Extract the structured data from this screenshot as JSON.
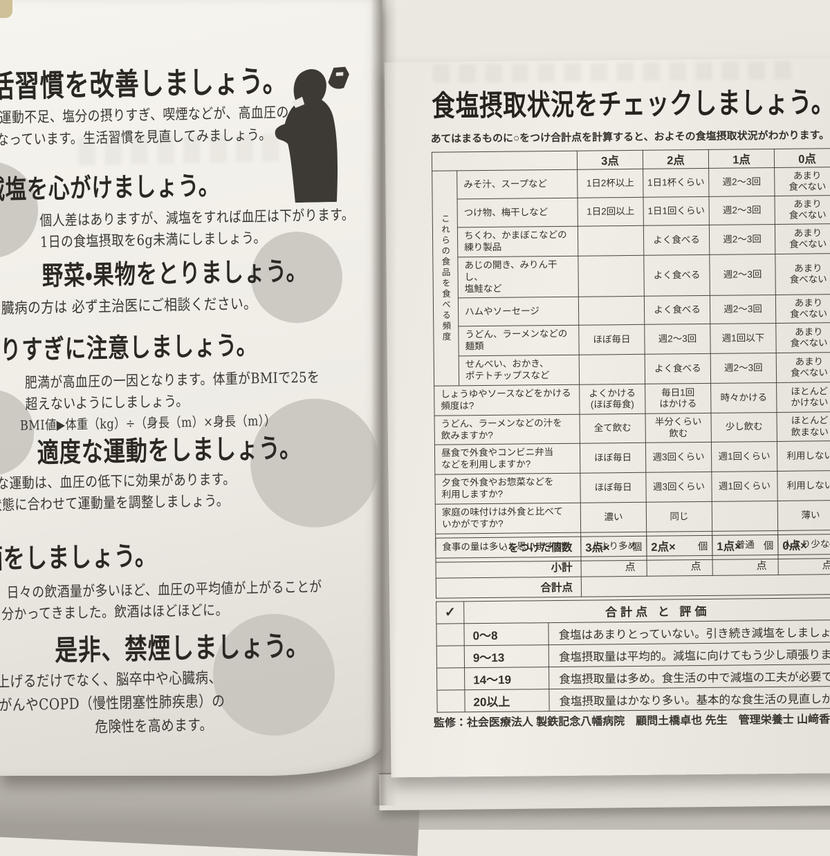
{
  "colors": {
    "paper_left": "#eeece5",
    "paper_right": "#ece9e2",
    "ink": "#34312c",
    "table_line": "#47443d",
    "circle": "#c6c3bc"
  },
  "icons": {
    "silhouette": "person-drinking-silhouette",
    "packet": "small-seasoning-packet"
  },
  "left_page": {
    "sections": [
      {
        "heading": "活習慣を改善しましょう。",
        "lines": [
          "や運動不足、塩分の摂りすぎ、喫煙などが、高血圧の",
          "となっています。生活習慣を見直してみましょう。"
        ]
      },
      {
        "heading": "減塩を心がけましょう。",
        "lines": [
          "個人差はありますが、減塩をすれば血圧は下がります。",
          "1日の食塩摂取を6g未満にしましょう。"
        ]
      },
      {
        "heading": "野菜・果物をとりましょう。",
        "lines": [
          "腎臓病の方は 必ず主治医にご相談ください。"
        ]
      },
      {
        "heading": "太りすぎに注意しましょう。",
        "lines": [
          "肥満が高血圧の一因となります。体重がBMIで25を",
          "超えないようにしましょう。",
          "BMI値▶体重（kg）÷（身長（m）×身長（m））"
        ]
      },
      {
        "heading": "適度な運動をしましょう。",
        "lines": [
          "適度な運動は、血圧の低下に効果があります。",
          "体の状態に合わせて運動量を調整しましょう。"
        ]
      },
      {
        "heading": "節酒をしましょう。",
        "lines": [
          "日々の飲酒量が多いほど、血圧の平均値が上がることが",
          "分かってきました。飲酒はほどほどに。"
        ]
      },
      {
        "heading": "是非、禁煙しましょう。",
        "lines": [
          "血圧を上げるだけでなく、脳卒中や心臓病、",
          "がんやCOPD（慢性閉塞性肺疾患）の",
          "危険性を高めます。"
        ]
      }
    ]
  },
  "right_page": {
    "title": "食塩摂取状況をチェックしましょう。",
    "subtitle": "あてはまるものに○をつけ合計点を計算すると、およその食塩摂取状況がわかります。",
    "check_table": {
      "score_headers": [
        "3点",
        "2点",
        "1点",
        "0点"
      ],
      "group_label": "これらの食品を食べる頻度",
      "group_rows": 7,
      "rows": [
        {
          "group": true,
          "label": "みそ汁、スープなど",
          "options": [
            "1日2杯以上",
            "1日1杯くらい",
            "週2〜3回",
            "あまり\n食べない"
          ]
        },
        {
          "group": true,
          "label": "つけ物、梅干しなど",
          "options": [
            "1日2回以上",
            "1日1回くらい",
            "週2〜3回",
            "あまり\n食べない"
          ]
        },
        {
          "group": true,
          "label": "ちくわ、かまぼこなどの\n練り製品",
          "options": [
            "",
            "よく食べる",
            "週2〜3回",
            "あまり\n食べない"
          ]
        },
        {
          "group": true,
          "label": "あじの開き、みりん干し、\n塩鮭など",
          "options": [
            "",
            "よく食べる",
            "週2〜3回",
            "あまり\n食べない"
          ]
        },
        {
          "group": true,
          "label": "ハムやソーセージ",
          "options": [
            "",
            "よく食べる",
            "週2〜3回",
            "あまり\n食べない"
          ]
        },
        {
          "group": true,
          "label": "うどん、ラーメンなどの\n麺類",
          "options": [
            "ほぼ毎日",
            "週2〜3回",
            "週1回以下",
            "あまり\n食べない"
          ]
        },
        {
          "group": true,
          "label": "せんべい、おかき、\nポテトチップスなど",
          "options": [
            "",
            "よく食べる",
            "週2〜3回",
            "あまり\n食べない"
          ]
        },
        {
          "group": false,
          "label": "しょうゆやソースなどをかける\n頻度は?",
          "options": [
            "よくかける\n(ほぼ毎食)",
            "毎日1回\nはかける",
            "時々かける",
            "ほとんど\nかけない"
          ]
        },
        {
          "group": false,
          "label": "うどん、ラーメンなどの汁を\n飲みますか?",
          "options": [
            "全て飲む",
            "半分くらい\n飲む",
            "少し飲む",
            "ほとんど\n飲まない"
          ]
        },
        {
          "group": false,
          "label": "昼食で外食やコンビニ弁当\nなどを利用しますか?",
          "options": [
            "ほぼ毎日",
            "週3回くらい",
            "週1回くらい",
            "利用しない"
          ]
        },
        {
          "group": false,
          "label": "夕食で外食やお惣菜などを\n利用しますか?",
          "options": [
            "ほぼ毎日",
            "週3回くらい",
            "週1回くらい",
            "利用しない"
          ]
        },
        {
          "group": false,
          "label": "家庭の味付けは外食と比べて\nいかがですか?",
          "options": [
            "濃い",
            "同じ",
            "",
            "薄い"
          ]
        },
        {
          "group": false,
          "label": "食事の量は多いと思いますか?",
          "options": [
            "人より多め",
            "",
            "普通",
            "人より少なめ"
          ]
        }
      ]
    },
    "score_table": {
      "count_label": "○をつけた個数",
      "cells": [
        {
          "pts": "3点×",
          "unit": "個"
        },
        {
          "pts": "2点×",
          "unit": "個"
        },
        {
          "pts": "1点×",
          "unit": "個"
        },
        {
          "pts": "0点×",
          "unit": "個"
        }
      ],
      "subtotal_label": "小計",
      "subtotal_unit": "点",
      "total_label": "合計点"
    },
    "evaluation_table": {
      "check": "✓",
      "header": "合計点 と 評価",
      "rows": [
        {
          "range": "0〜8",
          "text": "食塩はあまりとっていない。引き続き減塩をしましょう。"
        },
        {
          "range": "9〜13",
          "text": "食塩摂取量は平均的。減塩に向けてもう少し頑張りましょう。"
        },
        {
          "range": "14〜19",
          "text": "食塩摂取量は多め。食生活の中で減塩の工夫が必要です。"
        },
        {
          "range": "20以上",
          "text": "食塩摂取量はかなり多い。基本的な食生活の見直しが必要です。"
        }
      ]
    },
    "footer": "監修：社会医療法人 製鉄記念八幡病院　顧問土橋卓也 先生　管理栄養士 山﨑香織 先生"
  }
}
